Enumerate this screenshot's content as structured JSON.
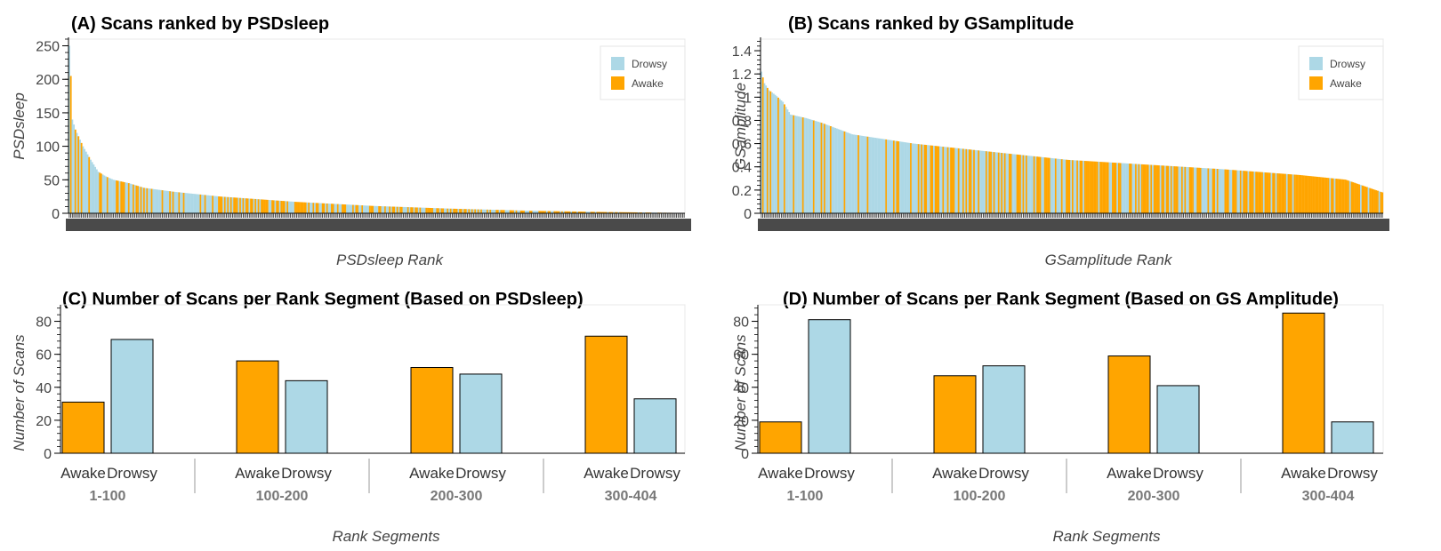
{
  "colors": {
    "drowsy": "#add8e6",
    "awake": "#ffa500",
    "axis": "#000000",
    "frame": "#e8e8e8"
  },
  "chart_data": [
    {
      "id": "A",
      "type": "bar",
      "title": "(A) Scans ranked by PSDsleep",
      "xlabel": "PSDsleep Rank",
      "ylabel": "PSDsleep",
      "ylim": [
        0,
        260
      ],
      "yticks": [
        0,
        50,
        100,
        150,
        200,
        250
      ],
      "ytick_labels": [
        "0",
        "50",
        "100",
        "150",
        "200",
        "250"
      ],
      "n_bars": 404,
      "legend": {
        "position": "top-right",
        "entries": [
          "Drowsy",
          "Awake"
        ]
      },
      "series": [
        {
          "name": "Drowsy",
          "color": "#add8e6"
        },
        {
          "name": "Awake",
          "color": "#ffa500"
        }
      ],
      "value_profile": {
        "rank": [
          1,
          2,
          3,
          5,
          7,
          10,
          15,
          20,
          25,
          30,
          40,
          50,
          70,
          100,
          150,
          200,
          250,
          300,
          350,
          404
        ],
        "value": [
          250,
          205,
          140,
          125,
          115,
          100,
          80,
          62,
          55,
          50,
          45,
          38,
          32,
          25,
          17,
          11,
          7,
          4,
          2,
          0.5
        ]
      },
      "segment_counts": {
        "1-100": {
          "Awake": 31,
          "Drowsy": 69
        },
        "100-200": {
          "Awake": 56,
          "Drowsy": 44
        },
        "200-300": {
          "Awake": 52,
          "Drowsy": 48
        },
        "300-404": {
          "Awake": 71,
          "Drowsy": 33
        }
      },
      "grid": false
    },
    {
      "id": "B",
      "type": "bar",
      "title": "(B) Scans ranked by GSamplitude",
      "xlabel": "GSamplitude Rank",
      "ylabel": "GSamplitude",
      "ylim": [
        0,
        1.5
      ],
      "yticks": [
        0,
        0.2,
        0.4,
        0.6,
        0.8,
        1.0,
        1.2,
        1.4
      ],
      "ytick_labels": [
        "0",
        "0.2",
        "0.4",
        "0.6",
        "0.8",
        "1",
        "1.2",
        "1.4"
      ],
      "n_bars": 404,
      "legend": {
        "position": "top-right",
        "entries": [
          "Drowsy",
          "Awake"
        ]
      },
      "series": [
        {
          "name": "Drowsy",
          "color": "#add8e6"
        },
        {
          "name": "Awake",
          "color": "#ffa500"
        }
      ],
      "value_profile": {
        "rank": [
          1,
          3,
          6,
          10,
          15,
          20,
          30,
          40,
          60,
          80,
          100,
          150,
          200,
          250,
          300,
          350,
          380,
          404
        ],
        "value": [
          1.22,
          1.12,
          1.06,
          1.02,
          0.96,
          0.85,
          0.82,
          0.78,
          0.68,
          0.64,
          0.6,
          0.53,
          0.46,
          0.42,
          0.38,
          0.33,
          0.29,
          0.18
        ]
      },
      "segment_counts": {
        "1-100": {
          "Awake": 19,
          "Drowsy": 81
        },
        "100-200": {
          "Awake": 47,
          "Drowsy": 53
        },
        "200-300": {
          "Awake": 59,
          "Drowsy": 41
        },
        "300-404": {
          "Awake": 85,
          "Drowsy": 19
        }
      },
      "grid": false
    },
    {
      "id": "C",
      "type": "bar",
      "title": "(C) Number of Scans per Rank Segment (Based on PSDsleep)",
      "xlabel": "Rank Segments",
      "ylabel": "Number of Scans",
      "ylim": [
        0,
        90
      ],
      "yticks": [
        0,
        20,
        40,
        60,
        80
      ],
      "categories": [
        "1-100",
        "100-200",
        "200-300",
        "300-404"
      ],
      "subcategories": [
        "Awake",
        "Drowsy"
      ],
      "series": [
        {
          "name": "Awake",
          "color": "#ffa500",
          "values": [
            31,
            56,
            52,
            71
          ]
        },
        {
          "name": "Drowsy",
          "color": "#add8e6",
          "values": [
            69,
            44,
            48,
            33
          ]
        }
      ],
      "grid": false
    },
    {
      "id": "D",
      "type": "bar",
      "title": "(D) Number of Scans per Rank Segment (Based on GS Amplitude)",
      "xlabel": "Rank Segments",
      "ylabel": "Number of Scans",
      "ylim": [
        0,
        90
      ],
      "yticks": [
        0,
        20,
        40,
        60,
        80
      ],
      "categories": [
        "1-100",
        "100-200",
        "200-300",
        "300-404"
      ],
      "subcategories": [
        "Awake",
        "Drowsy"
      ],
      "series": [
        {
          "name": "Awake",
          "color": "#ffa500",
          "values": [
            19,
            47,
            59,
            85
          ]
        },
        {
          "name": "Drowsy",
          "color": "#add8e6",
          "values": [
            81,
            53,
            41,
            19
          ]
        }
      ],
      "grid": false
    }
  ]
}
